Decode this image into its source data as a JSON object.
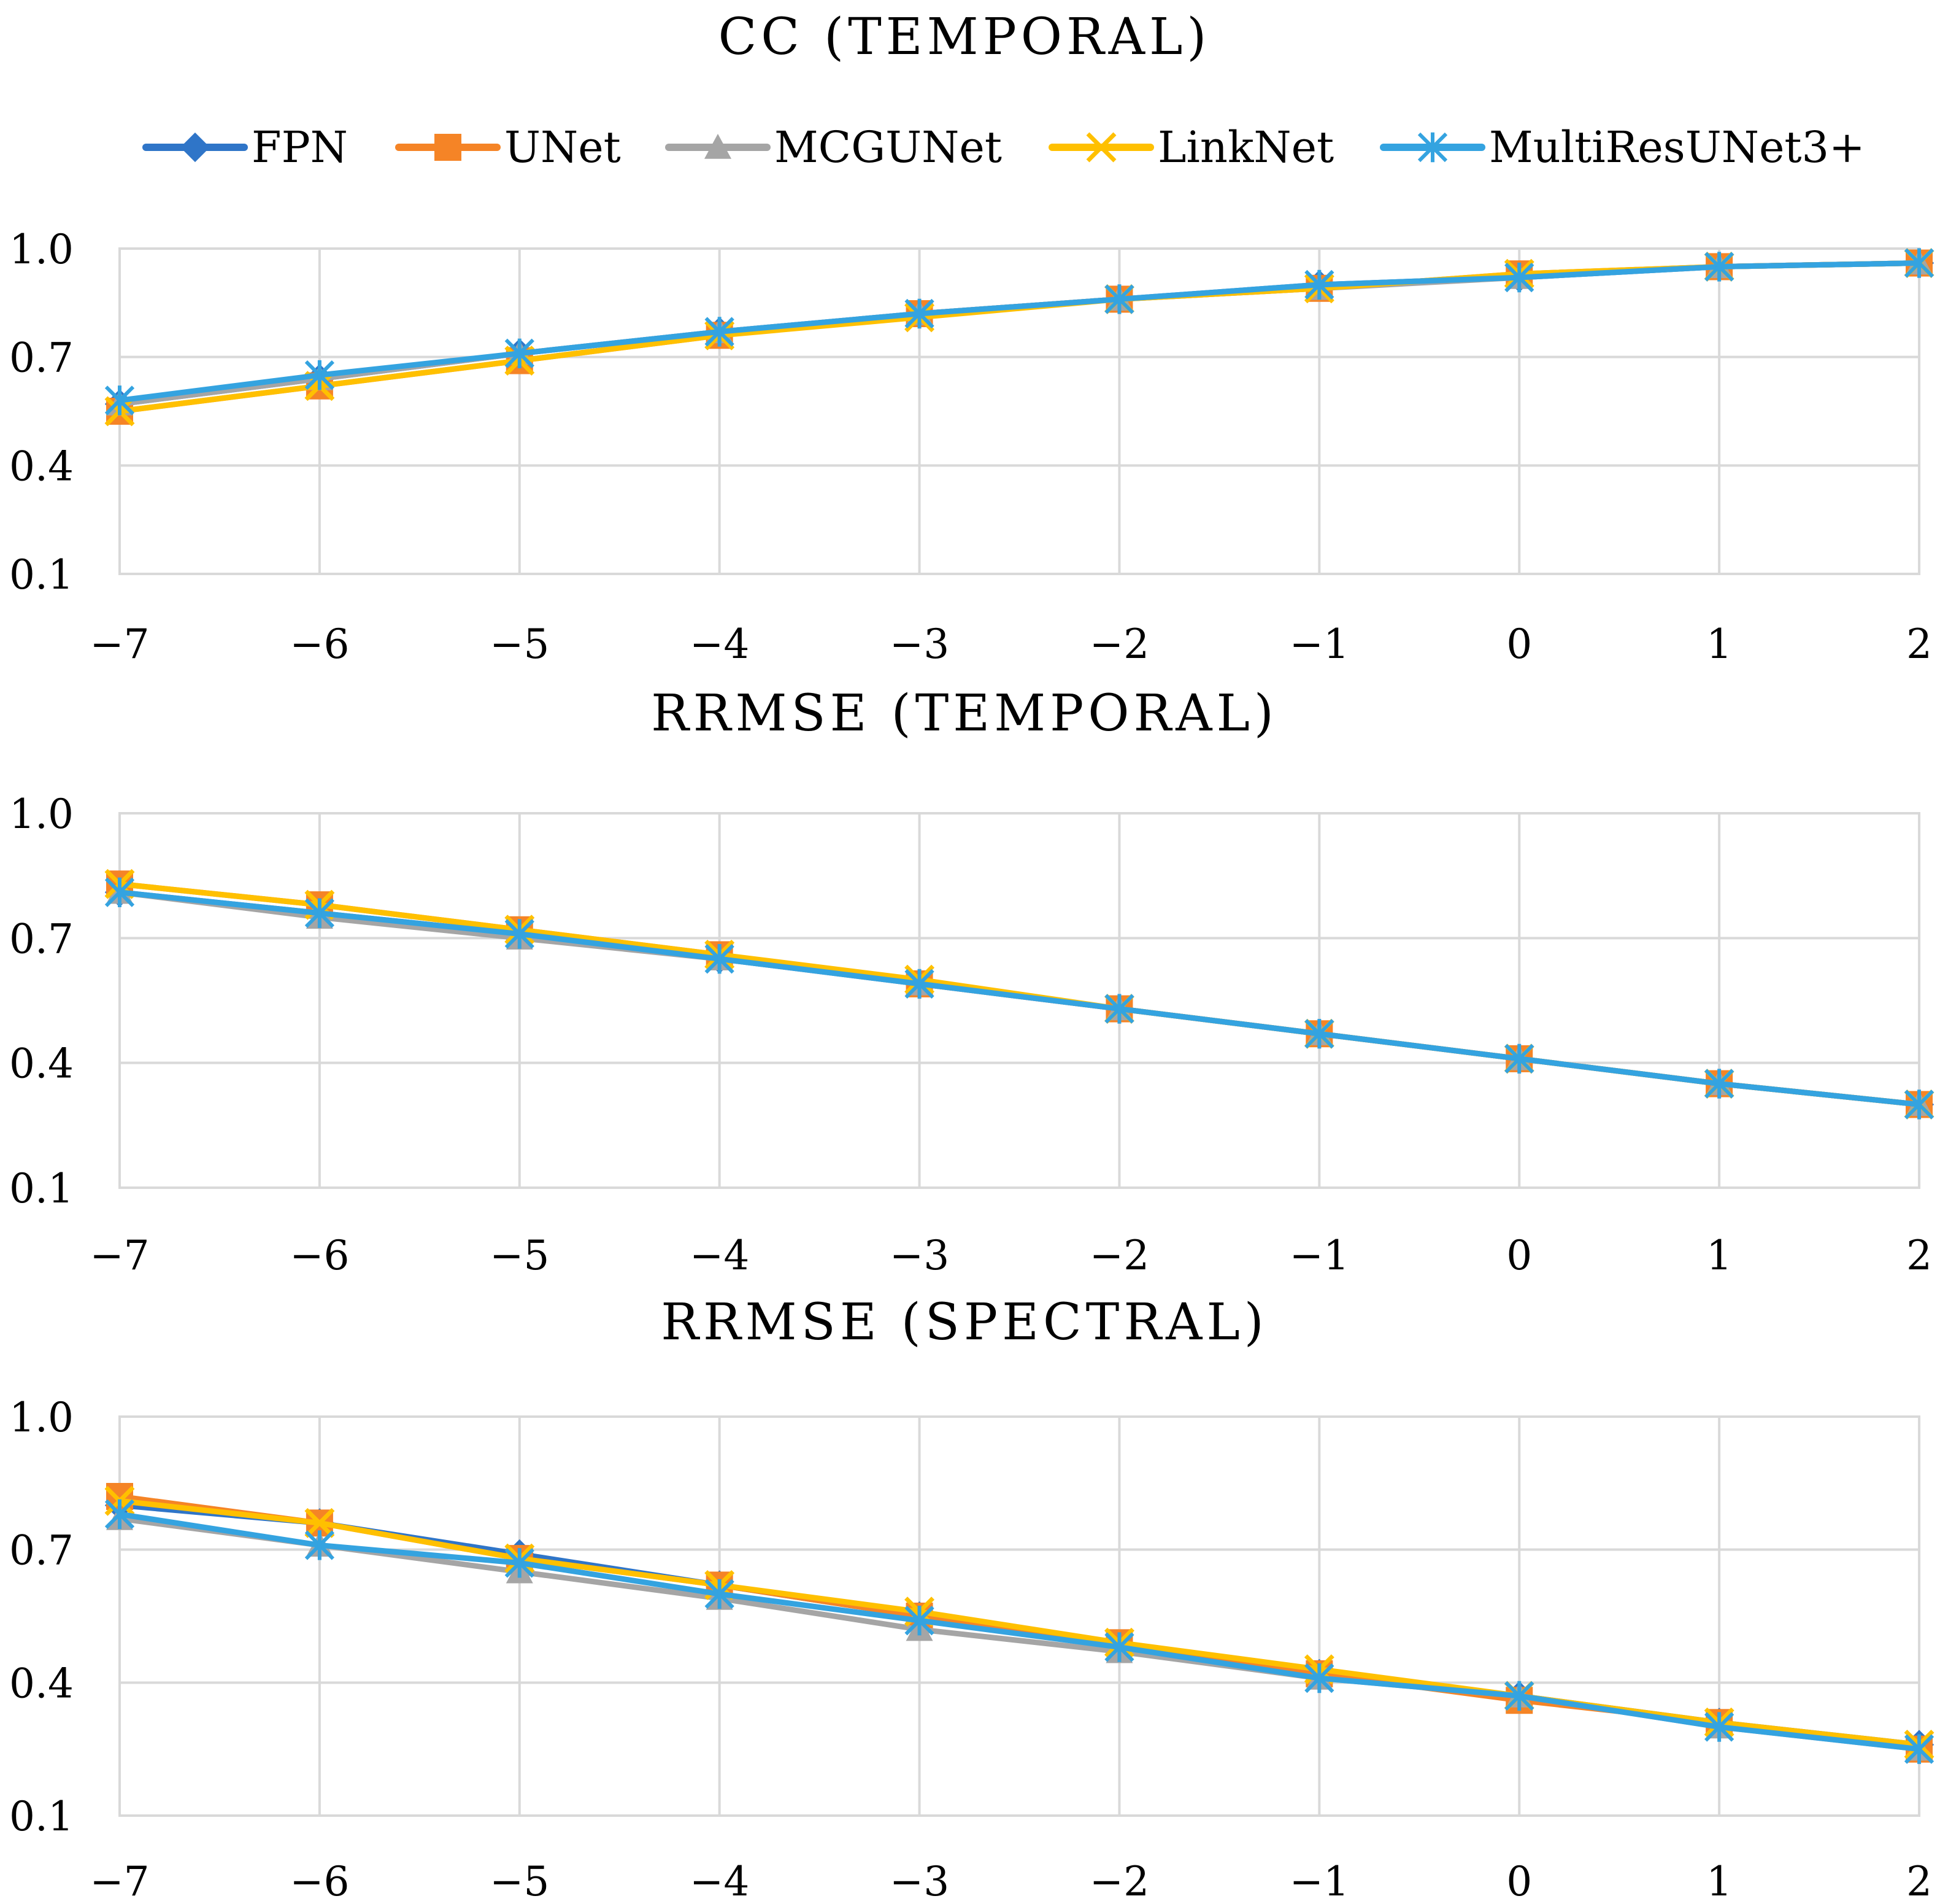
{
  "legend": [
    {
      "name": "FPN",
      "color": "#2f75c8",
      "marker": "diamond"
    },
    {
      "name": "UNet",
      "color": "#f58426",
      "marker": "square"
    },
    {
      "name": "MCGUNet",
      "color": "#a5a5a5",
      "marker": "triangle"
    },
    {
      "name": "LinkNet",
      "color": "#ffc000",
      "marker": "x"
    },
    {
      "name": "MultiResUNet3+",
      "color": "#34a3e0",
      "marker": "asterisk"
    }
  ],
  "chart_data": [
    {
      "type": "line",
      "title": "CC (TEMPORAL)",
      "xlabel": "",
      "ylabel": "",
      "categories": [
        "−7",
        "−6",
        "−5",
        "−4",
        "−3",
        "−2",
        "−1",
        "0",
        "1",
        "2"
      ],
      "x": [
        -7,
        -6,
        -5,
        -4,
        -3,
        -2,
        -1,
        0,
        1,
        2
      ],
      "ylim": [
        0.1,
        1.0
      ],
      "yticks": [
        "0.1",
        "0.4",
        "0.7",
        "1.0"
      ],
      "yticks_values": [
        0.1,
        0.4,
        0.7,
        1.0
      ],
      "series": [
        {
          "name": "FPN",
          "values": [
            0.57,
            0.64,
            0.71,
            0.77,
            0.82,
            0.86,
            0.9,
            0.92,
            0.95,
            0.96
          ]
        },
        {
          "name": "UNet",
          "values": [
            0.55,
            0.62,
            0.69,
            0.76,
            0.82,
            0.86,
            0.89,
            0.93,
            0.95,
            0.96
          ]
        },
        {
          "name": "MCGUNet",
          "values": [
            0.57,
            0.64,
            0.71,
            0.77,
            0.82,
            0.86,
            0.89,
            0.92,
            0.95,
            0.96
          ]
        },
        {
          "name": "LinkNet",
          "values": [
            0.55,
            0.62,
            0.69,
            0.76,
            0.81,
            0.86,
            0.89,
            0.93,
            0.95,
            0.96
          ]
        },
        {
          "name": "MultiResUNet3+",
          "values": [
            0.58,
            0.65,
            0.71,
            0.77,
            0.82,
            0.86,
            0.9,
            0.92,
            0.95,
            0.96
          ]
        }
      ]
    },
    {
      "type": "line",
      "title": "RRMSE (TEMPORAL)",
      "xlabel": "",
      "ylabel": "",
      "categories": [
        "−7",
        "−6",
        "−5",
        "−4",
        "−3",
        "−2",
        "−1",
        "0",
        "1",
        "2"
      ],
      "x": [
        -7,
        -6,
        -5,
        -4,
        -3,
        -2,
        -1,
        0,
        1,
        2
      ],
      "ylim": [
        0.1,
        1.0
      ],
      "yticks": [
        "0.1",
        "0.4",
        "0.7",
        "1.0"
      ],
      "yticks_values": [
        0.1,
        0.4,
        0.7,
        1.0
      ],
      "series": [
        {
          "name": "FPN",
          "values": [
            0.81,
            0.76,
            0.71,
            0.65,
            0.59,
            0.53,
            0.47,
            0.41,
            0.35,
            0.3
          ]
        },
        {
          "name": "UNet",
          "values": [
            0.83,
            0.78,
            0.72,
            0.66,
            0.59,
            0.53,
            0.47,
            0.41,
            0.35,
            0.3
          ]
        },
        {
          "name": "MCGUNet",
          "values": [
            0.81,
            0.75,
            0.7,
            0.65,
            0.59,
            0.53,
            0.47,
            0.41,
            0.35,
            0.3
          ]
        },
        {
          "name": "LinkNet",
          "values": [
            0.83,
            0.78,
            0.72,
            0.66,
            0.6,
            0.53,
            0.47,
            0.41,
            0.35,
            0.3
          ]
        },
        {
          "name": "MultiResUNet3+",
          "values": [
            0.81,
            0.76,
            0.71,
            0.65,
            0.59,
            0.53,
            0.47,
            0.41,
            0.35,
            0.3
          ]
        }
      ]
    },
    {
      "type": "line",
      "title": "RRMSE (SPECTRAL)",
      "xlabel": "",
      "ylabel": "",
      "categories": [
        "−7",
        "−6",
        "−5",
        "−4",
        "−3",
        "−2",
        "−1",
        "0",
        "1",
        "2"
      ],
      "x": [
        -7,
        -6,
        -5,
        -4,
        -3,
        -2,
        -1,
        0,
        1,
        2
      ],
      "ylim": [
        0.1,
        1.0
      ],
      "yticks": [
        "0.1",
        "0.4",
        "0.7",
        "1.0"
      ],
      "yticks_values": [
        0.1,
        0.4,
        0.7,
        1.0
      ],
      "series": [
        {
          "name": "FPN",
          "values": [
            0.8,
            0.76,
            0.69,
            0.62,
            0.55,
            0.48,
            0.42,
            0.37,
            0.31,
            0.26
          ]
        },
        {
          "name": "UNet",
          "values": [
            0.82,
            0.76,
            0.68,
            0.62,
            0.55,
            0.49,
            0.42,
            0.36,
            0.31,
            0.25
          ]
        },
        {
          "name": "MCGUNet",
          "values": [
            0.77,
            0.71,
            0.65,
            0.59,
            0.52,
            0.47,
            0.41,
            0.37,
            0.3,
            0.25
          ]
        },
        {
          "name": "LinkNet",
          "values": [
            0.81,
            0.76,
            0.68,
            0.62,
            0.56,
            0.49,
            0.43,
            0.37,
            0.31,
            0.26
          ]
        },
        {
          "name": "MultiResUNet3+",
          "values": [
            0.78,
            0.71,
            0.67,
            0.6,
            0.54,
            0.48,
            0.41,
            0.37,
            0.3,
            0.25
          ]
        }
      ]
    }
  ]
}
